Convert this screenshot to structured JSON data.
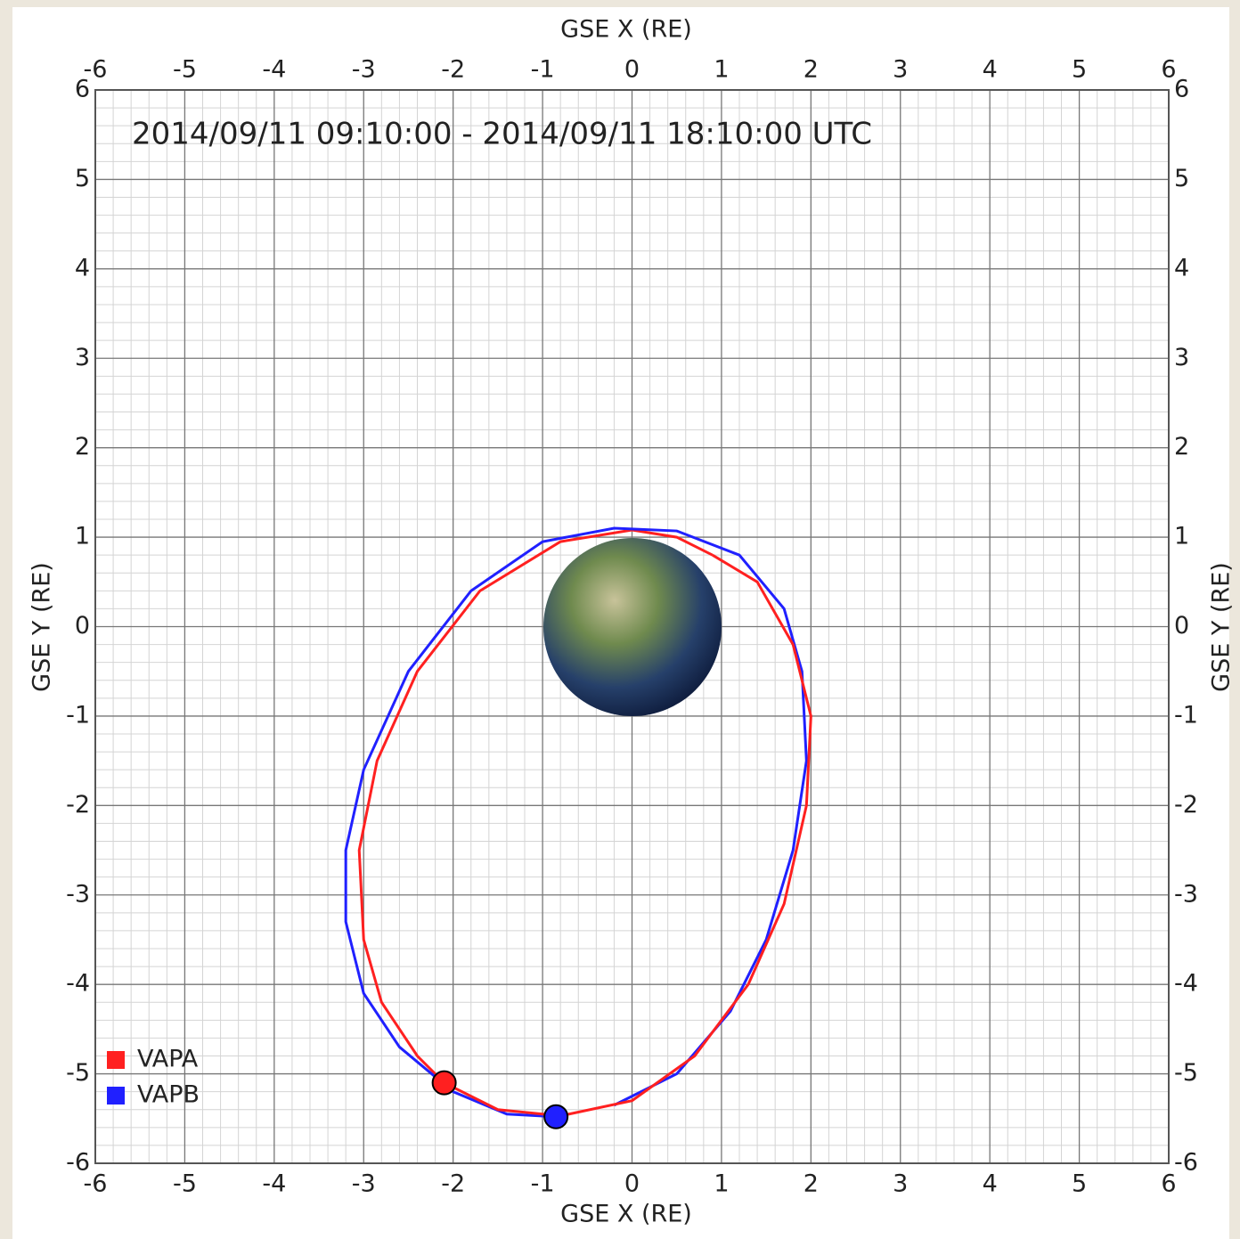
{
  "chart_data": {
    "type": "line",
    "title": "2014/09/11 09:10:00 - 2014/09/11 18:10:00 UTC",
    "x_label": "GSE X (RE)",
    "y_label": "GSE Y (RE)",
    "xlim": [
      -6,
      6
    ],
    "ylim": [
      -6,
      6
    ],
    "xticks": [
      -6,
      -5,
      -4,
      -3,
      -2,
      -1,
      0,
      1,
      2,
      3,
      4,
      5,
      6
    ],
    "yticks": [
      -6,
      -5,
      -4,
      -3,
      -2,
      -1,
      0,
      1,
      2,
      3,
      4,
      5,
      6
    ],
    "grid": true,
    "legend": "lower-left",
    "series": [
      {
        "name": "VAPA",
        "color": "#ff2020",
        "x": [
          0.9,
          0.5,
          0,
          -0.8,
          -1.7,
          -2.4,
          -2.85,
          -3.05,
          -3.0,
          -2.8,
          -2.4,
          -2.1
        ],
        "values": [
          0.8,
          1.0,
          1.08,
          0.95,
          0.4,
          -0.5,
          -1.5,
          -2.5,
          -3.5,
          -4.2,
          -4.8,
          -5.1
        ]
      },
      {
        "name": "VAPB",
        "color": "#2020ff",
        "x": [
          -0.2,
          0.5,
          1.1,
          1.5,
          1.8,
          1.95,
          1.9,
          1.7,
          1.2,
          0.5,
          -0.2,
          -1.0,
          -1.8,
          -2.5,
          -3.0,
          -3.2,
          -3.2,
          -3.0,
          -2.6,
          -2.0,
          -1.4,
          -0.85
        ],
        "values": [
          -5.35,
          -5.0,
          -4.3,
          -3.5,
          -2.5,
          -1.5,
          -0.5,
          0.2,
          0.8,
          1.07,
          1.1,
          0.95,
          0.4,
          -0.5,
          -1.6,
          -2.5,
          -3.3,
          -4.1,
          -4.7,
          -5.2,
          -5.45,
          -5.48
        ]
      },
      {
        "name": "VAPA",
        "color": "#ff2020",
        "x": [
          -2.1,
          -1.5,
          -0.8,
          0,
          0.7,
          1.3,
          1.7,
          1.95,
          2.0,
          1.8,
          1.4,
          0.9
        ],
        "values": [
          -5.1,
          -5.4,
          -5.47,
          -5.3,
          -4.8,
          -4.0,
          -3.1,
          -2.0,
          -1.0,
          -0.2,
          0.5,
          0.8
        ]
      }
    ]
  }
}
